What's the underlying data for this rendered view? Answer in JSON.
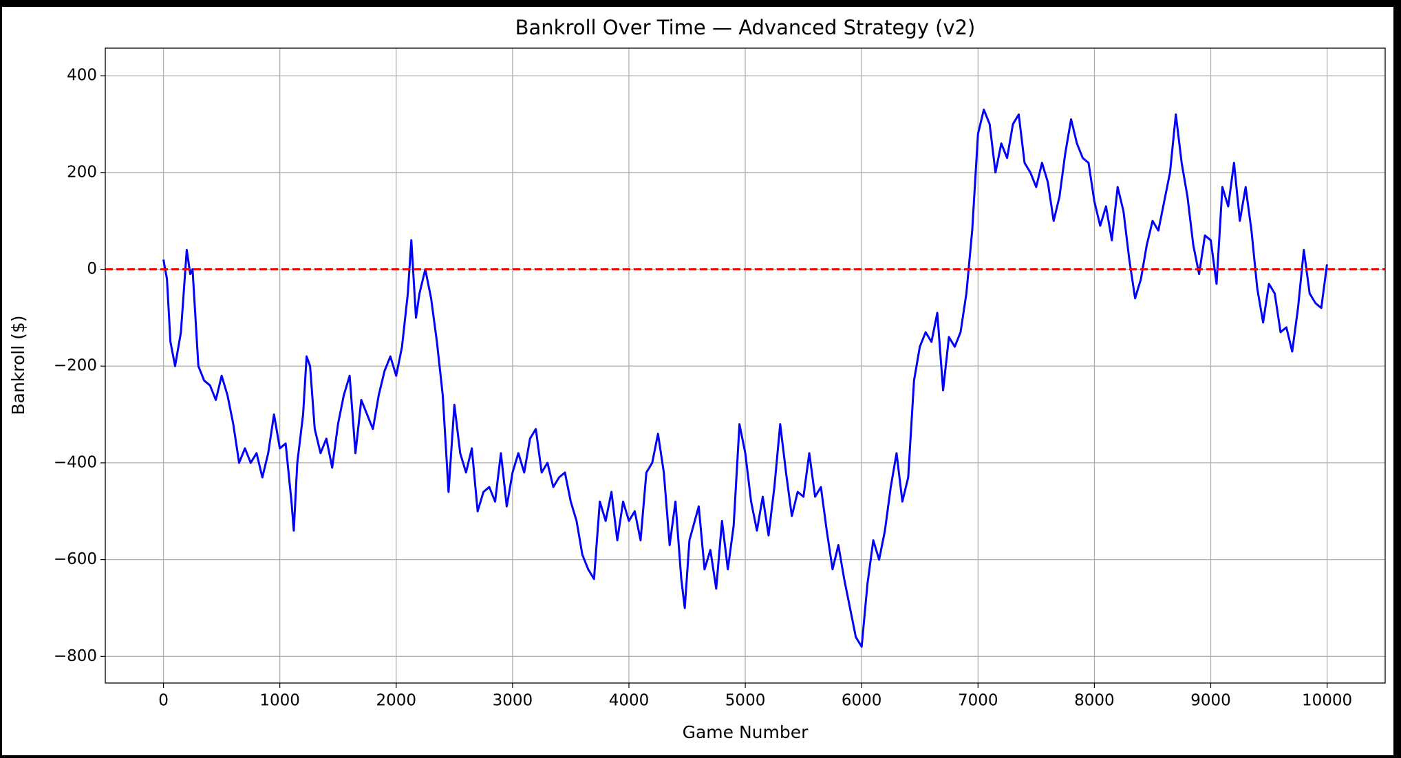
{
  "chart_data": {
    "type": "line",
    "title": "Bankroll Over Time — Advanced Strategy (v2)",
    "x_label": "Game Number",
    "y_label": "Bankroll ($)",
    "color": "#0000ff",
    "reference_line": {
      "value": 0,
      "color": "#ff0000",
      "style": "dashed"
    },
    "grid": true,
    "xlim": [
      -500,
      10499
    ],
    "ylim": [
      -855,
      457
    ],
    "xticks": [
      0,
      1000,
      2000,
      3000,
      4000,
      5000,
      6000,
      7000,
      8000,
      9000,
      10000
    ],
    "yticks": [
      {
        "value": -800,
        "label": "−800"
      },
      {
        "value": -600,
        "label": "−600"
      },
      {
        "value": -400,
        "label": "−400"
      },
      {
        "value": -200,
        "label": "−200"
      },
      0,
      200,
      400
    ],
    "x": [
      0,
      30,
      60,
      100,
      150,
      200,
      230,
      250,
      300,
      350,
      400,
      450,
      500,
      550,
      600,
      650,
      700,
      750,
      800,
      850,
      900,
      950,
      1000,
      1050,
      1100,
      1120,
      1150,
      1200,
      1230,
      1260,
      1300,
      1350,
      1400,
      1450,
      1500,
      1550,
      1600,
      1650,
      1700,
      1750,
      1800,
      1850,
      1900,
      1950,
      2000,
      2050,
      2100,
      2130,
      2170,
      2200,
      2250,
      2300,
      2350,
      2400,
      2450,
      2500,
      2550,
      2600,
      2650,
      2700,
      2750,
      2800,
      2850,
      2900,
      2950,
      3000,
      3050,
      3100,
      3150,
      3200,
      3250,
      3300,
      3350,
      3400,
      3450,
      3500,
      3550,
      3600,
      3650,
      3700,
      3750,
      3800,
      3850,
      3900,
      3950,
      4000,
      4050,
      4100,
      4150,
      4200,
      4250,
      4300,
      4350,
      4400,
      4450,
      4480,
      4520,
      4600,
      4650,
      4700,
      4750,
      4800,
      4850,
      4900,
      4950,
      5000,
      5050,
      5100,
      5150,
      5200,
      5250,
      5300,
      5350,
      5400,
      5450,
      5500,
      5550,
      5600,
      5650,
      5700,
      5750,
      5800,
      5850,
      5900,
      5950,
      6000,
      6050,
      6100,
      6150,
      6200,
      6250,
      6300,
      6350,
      6400,
      6450,
      6500,
      6550,
      6600,
      6650,
      6700,
      6750,
      6800,
      6850,
      6900,
      6950,
      7000,
      7050,
      7100,
      7150,
      7200,
      7250,
      7300,
      7350,
      7400,
      7450,
      7500,
      7550,
      7600,
      7650,
      7700,
      7750,
      7800,
      7850,
      7900,
      7950,
      8000,
      8050,
      8100,
      8150,
      8200,
      8250,
      8300,
      8350,
      8400,
      8450,
      8500,
      8550,
      8600,
      8650,
      8700,
      8750,
      8800,
      8850,
      8900,
      8950,
      9000,
      9050,
      9100,
      9150,
      9200,
      9250,
      9300,
      9350,
      9400,
      9450,
      9500,
      9550,
      9600,
      9650,
      9700,
      9750,
      9800,
      9850,
      9900,
      9950,
      9999
    ],
    "values": [
      20,
      -20,
      -150,
      -200,
      -130,
      40,
      -10,
      0,
      -200,
      -230,
      -240,
      -270,
      -220,
      -260,
      -320,
      -400,
      -370,
      -400,
      -380,
      -430,
      -380,
      -300,
      -370,
      -360,
      -480,
      -540,
      -400,
      -300,
      -180,
      -200,
      -330,
      -380,
      -350,
      -410,
      -320,
      -260,
      -220,
      -380,
      -270,
      -300,
      -330,
      -260,
      -210,
      -180,
      -220,
      -160,
      -50,
      60,
      -100,
      -50,
      0,
      -60,
      -150,
      -260,
      -460,
      -280,
      -380,
      -420,
      -370,
      -500,
      -460,
      -450,
      -480,
      -380,
      -490,
      -420,
      -380,
      -420,
      -350,
      -330,
      -420,
      -400,
      -450,
      -430,
      -420,
      -480,
      -520,
      -590,
      -620,
      -640,
      -480,
      -520,
      -460,
      -560,
      -480,
      -520,
      -500,
      -560,
      -420,
      -400,
      -340,
      -420,
      -570,
      -480,
      -640,
      -700,
      -560,
      -490,
      -620,
      -580,
      -660,
      -520,
      -620,
      -530,
      -320,
      -380,
      -480,
      -540,
      -470,
      -550,
      -450,
      -320,
      -420,
      -510,
      -460,
      -470,
      -380,
      -470,
      -450,
      -540,
      -620,
      -570,
      -640,
      -700,
      -760,
      -780,
      -650,
      -560,
      -600,
      -540,
      -450,
      -380,
      -480,
      -430,
      -230,
      -160,
      -130,
      -150,
      -90,
      -250,
      -140,
      -160,
      -130,
      -50,
      80,
      280,
      330,
      300,
      200,
      260,
      230,
      300,
      320,
      220,
      200,
      170,
      220,
      180,
      100,
      150,
      240,
      310,
      260,
      230,
      220,
      140,
      90,
      130,
      60,
      170,
      120,
      20,
      -60,
      -20,
      50,
      100,
      80,
      140,
      200,
      320,
      220,
      150,
      50,
      -10,
      70,
      60,
      -30,
      170,
      130,
      220,
      100,
      170,
      80,
      -40,
      -110,
      -30,
      -50,
      -130,
      -120,
      -170,
      -80,
      40,
      -50,
      -70,
      -80,
      10
    ]
  }
}
